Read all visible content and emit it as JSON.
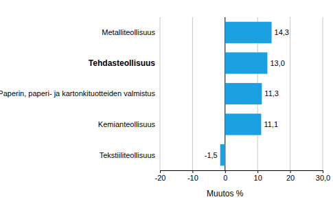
{
  "chart_data": {
    "type": "bar",
    "orientation": "horizontal",
    "categories": [
      "Metalliteollisuus",
      "Tehdasteollisuus",
      "Paperin, paperi- ja kartonkituotteiden valmistus",
      "Kemianteollisuus",
      "Tekstiiliteollisuus"
    ],
    "values": [
      14.3,
      13.0,
      11.3,
      11.1,
      -1.5
    ],
    "value_labels": [
      "14,3",
      "13,0",
      "11,3",
      "11,1",
      "-1,5"
    ],
    "color": "#1ba1e2",
    "xlabel": "Muutos %",
    "xlim": [
      -20,
      30
    ],
    "xticks": [
      -20,
      -10,
      0,
      10,
      20,
      {
        "value": 30,
        "label": "30,0"
      }
    ],
    "grid": true,
    "data_labels": true
  }
}
